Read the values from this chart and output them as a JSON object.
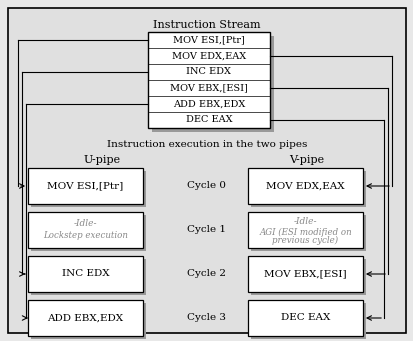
{
  "title_top": "Instruction Stream",
  "title_mid": "Instruction execution in the two pipes",
  "upipe_label": "U-pipe",
  "vpipe_label": "V-pipe",
  "stream_instructions": [
    "MOV ESI,[Ptr]",
    "MOV EDX,EAX",
    "INC EDX",
    "MOV EBX,[ESI]",
    "ADD EBX,EDX",
    "DEC EAX"
  ],
  "cycles": [
    "Cycle 0",
    "Cycle 1",
    "Cycle 2",
    "Cycle 3"
  ],
  "upipe_boxes": [
    {
      "line1": "MOV ESI,[Ptr]",
      "line2": "",
      "italic": false
    },
    {
      "line1": "-Idle-",
      "line2": "Lockstep execution",
      "italic": true
    },
    {
      "line1": "INC EDX",
      "line2": "",
      "italic": false
    },
    {
      "line1": "ADD EBX,EDX",
      "line2": "",
      "italic": false
    }
  ],
  "vpipe_boxes": [
    {
      "line1": "MOV EDX,EAX",
      "line2": "",
      "italic": false
    },
    {
      "line1": "-Idle-",
      "line2": "AGI (ESI modified on\nprevious cycle)",
      "italic": true
    },
    {
      "line1": "MOV EBX,[ESI]",
      "line2": "",
      "italic": false
    },
    {
      "line1": "DEC EAX",
      "line2": "",
      "italic": false
    }
  ],
  "bg_color": "#e8e8e8",
  "box_facecolor": "#ffffff",
  "box_edgecolor": "#000000",
  "shadow_color": "#999999",
  "text_color": "#000000",
  "idle_text_color": "#888888",
  "line_color": "#000000",
  "outer_box_facecolor": "#e0e0e0"
}
